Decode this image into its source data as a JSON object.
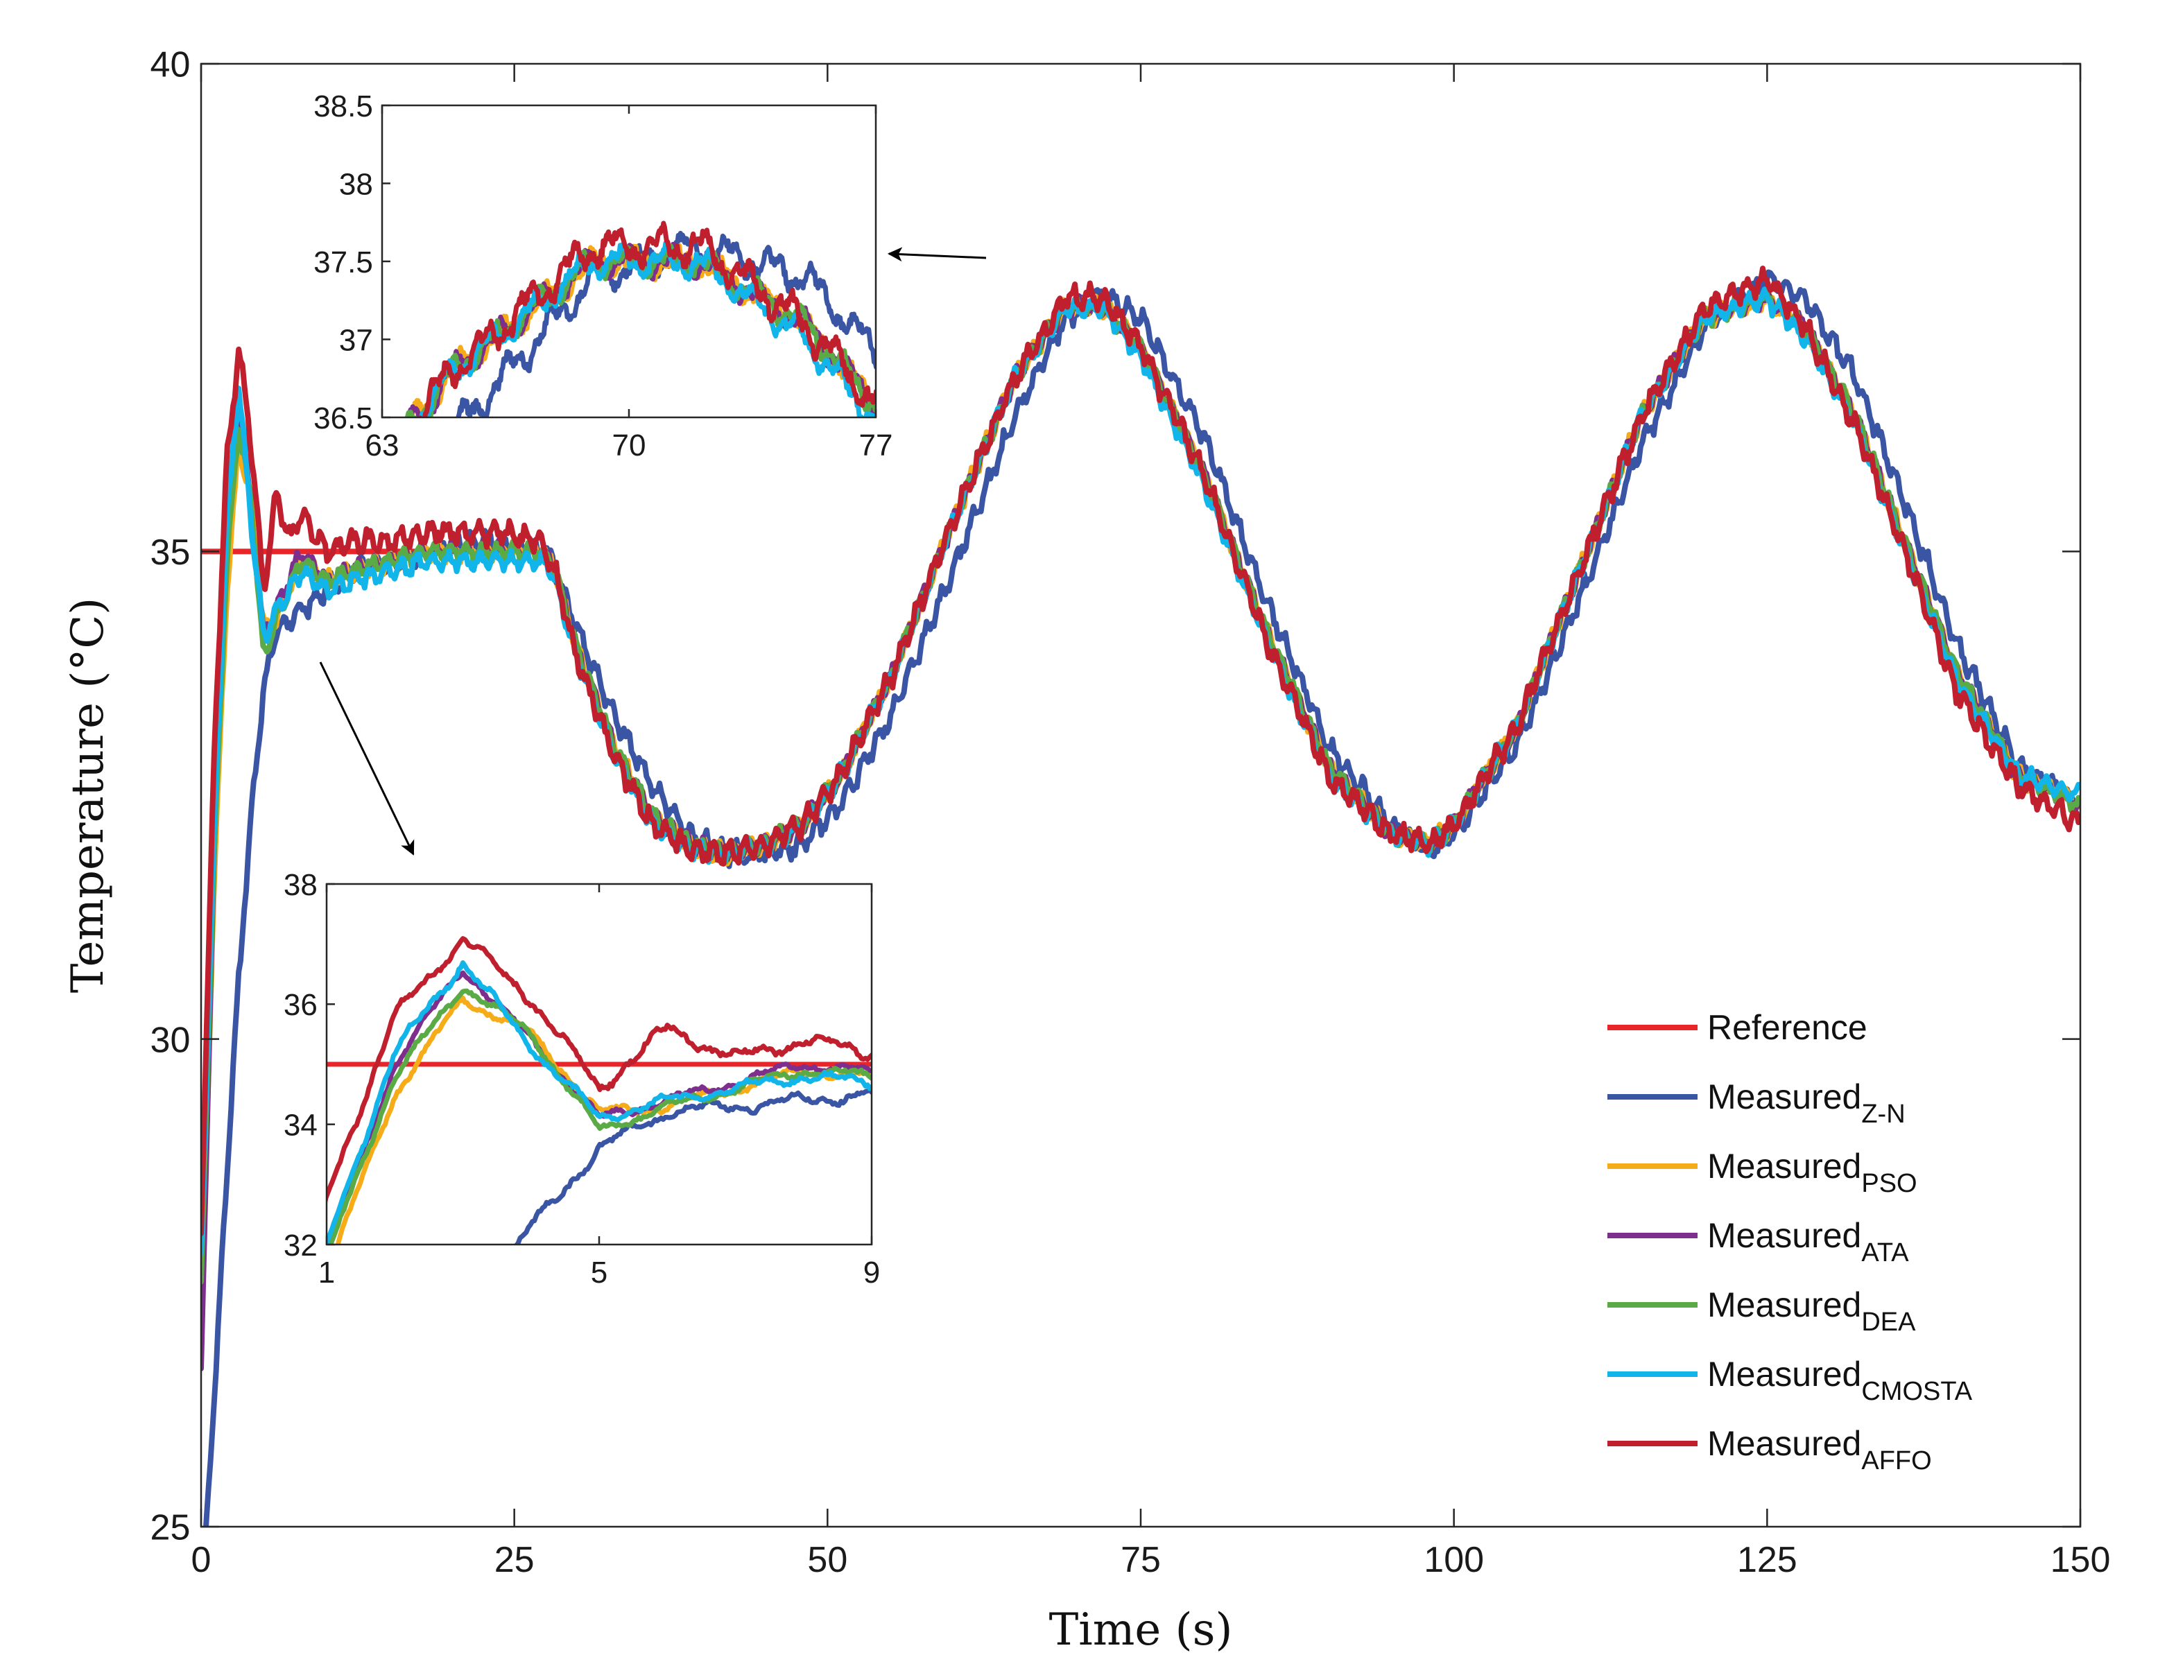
{
  "chart_data": {
    "type": "line",
    "xlabel": "Time (s)",
    "ylabel": "Temperature (°C)",
    "xlim": [
      0,
      150
    ],
    "ylim": [
      25,
      40
    ],
    "xticks": [
      "0",
      "25",
      "50",
      "75",
      "100",
      "125",
      "150"
    ],
    "yticks": [
      "25",
      "30",
      "35",
      "40"
    ],
    "grid": false,
    "legend_position": "lower-right",
    "reference": {
      "name": "Reference",
      "color": "#e8262a",
      "value": 35,
      "x_range": [
        0,
        28
      ]
    },
    "series": [
      {
        "name": "Measured",
        "subscript": "Z-N",
        "color": "#3b55a5",
        "lag": 1.5,
        "noise": 0.15,
        "x": [
          0,
          1,
          2,
          3,
          4,
          5,
          6,
          8,
          10,
          12,
          15,
          18,
          21,
          24,
          27,
          28,
          30,
          33,
          36,
          39,
          42,
          45,
          48,
          51,
          55,
          60,
          65,
          69,
          72,
          75,
          80,
          85,
          90,
          95,
          98,
          100,
          105,
          110,
          115,
          120,
          125,
          128,
          132,
          136,
          140,
          145,
          150
        ],
        "y": [
          24.2,
          26.2,
          28.5,
          30.6,
          32.3,
          33.6,
          34.2,
          34.4,
          34.6,
          34.8,
          34.9,
          35.0,
          35.1,
          35.1,
          35.0,
          34.9,
          34.2,
          33.3,
          32.6,
          32.1,
          31.9,
          31.9,
          32.0,
          32.4,
          33.3,
          34.8,
          36.4,
          37.4,
          37.6,
          37.4,
          36.2,
          34.5,
          33.0,
          32.2,
          31.95,
          32.1,
          33.0,
          34.5,
          36.1,
          37.3,
          37.8,
          37.6,
          36.8,
          35.5,
          34.1,
          32.8,
          32.4
        ]
      },
      {
        "name": "Measured",
        "subscript": "PSO",
        "color": "#f6ac19",
        "lag": 0.6,
        "noise": 0.12,
        "x": [
          0,
          1,
          2,
          3,
          4,
          5,
          6,
          8,
          10,
          12,
          15,
          18,
          21,
          24,
          27,
          28,
          30,
          33,
          36,
          39,
          42,
          45,
          48,
          51,
          55,
          60,
          65,
          69,
          72,
          75,
          80,
          85,
          90,
          95,
          98,
          100,
          105,
          110,
          115,
          120,
          125,
          128,
          132,
          136,
          140,
          145,
          150
        ],
        "y": [
          27.0,
          31.5,
          34.5,
          36.1,
          35.5,
          34.2,
          34.3,
          34.9,
          34.7,
          34.8,
          34.9,
          35.0,
          35.0,
          35.0,
          35.0,
          34.9,
          34.0,
          33.0,
          32.3,
          32.0,
          31.9,
          32.0,
          32.2,
          32.7,
          33.7,
          35.3,
          36.8,
          37.5,
          37.5,
          37.1,
          35.8,
          34.2,
          32.8,
          32.1,
          32.0,
          32.2,
          33.2,
          34.8,
          36.4,
          37.4,
          37.6,
          37.3,
          36.4,
          35.1,
          33.8,
          32.7,
          32.4
        ]
      },
      {
        "name": "Measured",
        "subscript": "ATA",
        "color": "#7e2f8e",
        "lag": 0.4,
        "noise": 0.12,
        "x": [
          0,
          1,
          2,
          3,
          4,
          5,
          6,
          8,
          10,
          12,
          15,
          18,
          21,
          24,
          27,
          28,
          30,
          33,
          36,
          39,
          42,
          45,
          48,
          51,
          55,
          60,
          65,
          69,
          72,
          75,
          80,
          85,
          90,
          95,
          98,
          100,
          105,
          110,
          115,
          120,
          125,
          128,
          132,
          136,
          140,
          145,
          150
        ],
        "y": [
          26.6,
          31.8,
          35.0,
          36.6,
          35.4,
          34.1,
          34.4,
          35.0,
          34.7,
          34.8,
          34.9,
          35.0,
          35.0,
          35.0,
          35.0,
          34.9,
          34.0,
          33.0,
          32.3,
          32.0,
          31.9,
          32.0,
          32.2,
          32.7,
          33.7,
          35.3,
          36.8,
          37.5,
          37.5,
          37.1,
          35.8,
          34.2,
          32.8,
          32.1,
          32.0,
          32.2,
          33.2,
          34.8,
          36.4,
          37.4,
          37.6,
          37.3,
          36.4,
          35.1,
          33.8,
          32.7,
          32.4
        ]
      },
      {
        "name": "Measured",
        "subscript": "DEA",
        "color": "#5aaa46",
        "lag": 0.5,
        "noise": 0.12,
        "x": [
          0,
          1,
          2,
          3,
          4,
          5,
          6,
          8,
          10,
          12,
          15,
          18,
          21,
          24,
          27,
          28,
          30,
          33,
          36,
          39,
          42,
          45,
          48,
          51,
          55,
          60,
          65,
          69,
          72,
          75,
          80,
          85,
          90,
          95,
          98,
          100,
          105,
          110,
          115,
          120,
          125,
          128,
          132,
          136,
          140,
          145,
          150
        ],
        "y": [
          27.5,
          31.8,
          34.8,
          36.3,
          35.5,
          33.9,
          34.3,
          34.9,
          34.7,
          34.8,
          34.9,
          35.0,
          35.0,
          35.0,
          35.0,
          34.9,
          34.0,
          33.0,
          32.3,
          32.0,
          31.9,
          32.0,
          32.2,
          32.7,
          33.7,
          35.3,
          36.8,
          37.5,
          37.5,
          37.1,
          35.8,
          34.2,
          32.8,
          32.1,
          32.0,
          32.2,
          33.2,
          34.8,
          36.4,
          37.4,
          37.6,
          37.3,
          36.4,
          35.1,
          33.8,
          32.7,
          32.4
        ]
      },
      {
        "name": "Measured",
        "subscript": "CMOSTA",
        "color": "#12b5ea",
        "lag": 0.3,
        "noise": 0.13,
        "x": [
          0,
          1,
          2,
          3,
          4,
          5,
          6,
          8,
          10,
          12,
          15,
          18,
          21,
          24,
          27,
          28,
          30,
          33,
          36,
          39,
          42,
          45,
          48,
          51,
          55,
          60,
          65,
          69,
          72,
          75,
          80,
          85,
          90,
          95,
          98,
          100,
          105,
          110,
          115,
          120,
          125,
          128,
          132,
          136,
          140,
          145,
          150
        ],
        "y": [
          27.8,
          32.0,
          35.2,
          36.7,
          35.3,
          34.1,
          34.4,
          34.8,
          34.6,
          34.7,
          34.8,
          34.9,
          34.9,
          34.9,
          34.9,
          34.8,
          33.9,
          32.9,
          32.2,
          31.95,
          31.9,
          32.0,
          32.2,
          32.7,
          33.7,
          35.3,
          36.8,
          37.5,
          37.5,
          37.0,
          35.7,
          34.1,
          32.7,
          32.1,
          32.0,
          32.2,
          33.2,
          34.8,
          36.4,
          37.4,
          37.6,
          37.2,
          36.3,
          35.0,
          33.7,
          32.7,
          32.5
        ]
      },
      {
        "name": "Measured",
        "subscript": "AFFO",
        "color": "#c0202e",
        "lag": 0.0,
        "noise": 0.16,
        "x": [
          0,
          1,
          2,
          3,
          4,
          5,
          6,
          7,
          8,
          10,
          12,
          15,
          18,
          21,
          24,
          27,
          28,
          30,
          33,
          36,
          39,
          42,
          45,
          48,
          51,
          55,
          60,
          65,
          69,
          72,
          75,
          80,
          85,
          90,
          95,
          98,
          100,
          105,
          110,
          115,
          120,
          125,
          128,
          132,
          136,
          140,
          145,
          150
        ],
        "y": [
          28.0,
          32.8,
          35.8,
          37.1,
          36.1,
          34.6,
          35.6,
          35.1,
          35.4,
          35.0,
          35.1,
          35.1,
          35.2,
          35.2,
          35.2,
          35.1,
          34.9,
          33.9,
          32.9,
          32.2,
          31.95,
          31.9,
          32.0,
          32.2,
          32.7,
          33.7,
          35.3,
          36.8,
          37.6,
          37.6,
          37.1,
          35.8,
          34.1,
          32.7,
          32.1,
          32.0,
          32.2,
          33.2,
          34.8,
          36.4,
          37.5,
          37.8,
          37.3,
          36.3,
          35.0,
          33.6,
          32.6,
          32.2
        ]
      }
    ],
    "insets": [
      {
        "xlim": [
          63,
          77
        ],
        "ylim": [
          36.5,
          38.5
        ],
        "xticks": [
          "63",
          "70",
          "77"
        ],
        "yticks": [
          "36.5",
          "37",
          "37.5",
          "38",
          "38.5"
        ]
      },
      {
        "xlim": [
          1,
          9
        ],
        "ylim": [
          32,
          38
        ],
        "xticks": [
          "1",
          "5",
          "9"
        ],
        "yticks": [
          "32",
          "34",
          "36",
          "38"
        ]
      }
    ]
  }
}
